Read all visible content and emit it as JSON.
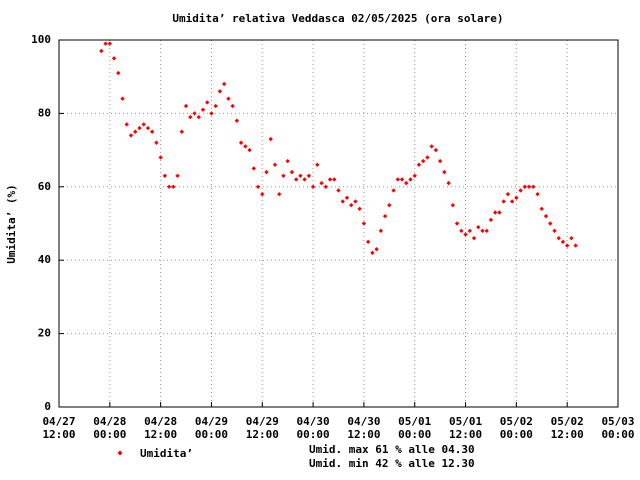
{
  "chart_data": {
    "type": "scatter",
    "title": "Umidita’ relativa Veddasca 02/05/2025 (ora solare)",
    "y_label": "Umidita’ (%)",
    "annotations": [
      "Umid. max 61 % alle 04.30",
      "Umid. min 42 % alle 12.30"
    ],
    "x": [
      10,
      11,
      12,
      13,
      14,
      15,
      16,
      17,
      18,
      19,
      20,
      21,
      22,
      23,
      24,
      25,
      26,
      27,
      28,
      29,
      30,
      31,
      32,
      33,
      34,
      35,
      36,
      37,
      38,
      39,
      40,
      41,
      42,
      43,
      44,
      45,
      46,
      47,
      48,
      49,
      50,
      51,
      52,
      53,
      54,
      55,
      56,
      57,
      58,
      59,
      60,
      61,
      62,
      63,
      64,
      65,
      66,
      67,
      68,
      69,
      70,
      71,
      72,
      73,
      74,
      75,
      76,
      77,
      78,
      79,
      80,
      81,
      82,
      83,
      84,
      85,
      86,
      87,
      88,
      89,
      90,
      91,
      92,
      93,
      94,
      95,
      96,
      97,
      98,
      99,
      100,
      101,
      102,
      103,
      104,
      105,
      106,
      107,
      108,
      109,
      110,
      111,
      112,
      113,
      114,
      115,
      116,
      117,
      118,
      119,
      120,
      121,
      122
    ],
    "series": [
      {
        "name": "Umidita’",
        "color": "#ff0000",
        "values": [
          97,
          99,
          99,
          95,
          91,
          84,
          77,
          74,
          75,
          76,
          77,
          76,
          75,
          72,
          68,
          63,
          60,
          60,
          63,
          75,
          82,
          79,
          80,
          79,
          81,
          83,
          80,
          82,
          86,
          88,
          84,
          82,
          78,
          72,
          71,
          70,
          65,
          60,
          58,
          64,
          73,
          66,
          58,
          63,
          67,
          64,
          62,
          63,
          62,
          63,
          60,
          66,
          61,
          60,
          62,
          62,
          59,
          56,
          57,
          55,
          56,
          54,
          50,
          45,
          42,
          43,
          48,
          52,
          55,
          59,
          62,
          62,
          61,
          62,
          63,
          66,
          67,
          68,
          71,
          70,
          67,
          64,
          61,
          55,
          50,
          48,
          47,
          48,
          46,
          49,
          48,
          48,
          51,
          53,
          53,
          56,
          58,
          56,
          57,
          59,
          60,
          60,
          60,
          58,
          54,
          52,
          50,
          48,
          46,
          45,
          44,
          46,
          44
        ]
      }
    ],
    "xlim": [
      0,
      132
    ],
    "xticks": [
      {
        "value": 0,
        "label": "04/27\n12:00"
      },
      {
        "value": 12,
        "label": "04/28\n00:00"
      },
      {
        "value": 24,
        "label": "04/28\n12:00"
      },
      {
        "value": 36,
        "label": "04/29\n00:00"
      },
      {
        "value": 48,
        "label": "04/29\n12:00"
      },
      {
        "value": 60,
        "label": "04/30\n00:00"
      },
      {
        "value": 72,
        "label": "04/30\n12:00"
      },
      {
        "value": 84,
        "label": "05/01\n00:00"
      },
      {
        "value": 96,
        "label": "05/01\n12:00"
      },
      {
        "value": 108,
        "label": "05/02\n00:00"
      },
      {
        "value": 120,
        "label": "05/02\n12:00"
      },
      {
        "value": 132,
        "label": "05/03\n00:00"
      }
    ],
    "ylim": [
      0,
      100
    ],
    "yticks": [
      0,
      20,
      40,
      60,
      80,
      100
    ],
    "grid": true
  }
}
